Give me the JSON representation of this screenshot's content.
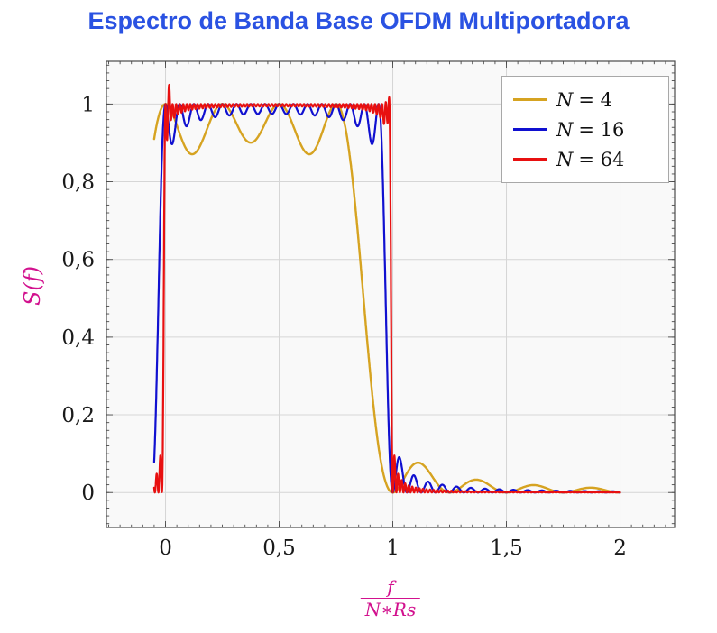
{
  "title": {
    "text": "Espectro de Banda Base OFDM Multiportadora",
    "color": "#2a52e2"
  },
  "ylabel": {
    "text": "S(f)",
    "color": "#d2118e"
  },
  "xlabel": {
    "numerator": "f",
    "denominator": "N∗Rs",
    "color": "#d2118e"
  },
  "legend": {
    "position": "top-right",
    "items": [
      {
        "var": "N",
        "val": "= 4",
        "color": "#d6a321"
      },
      {
        "var": "N",
        "val": "= 16",
        "color": "#1010d0"
      },
      {
        "var": "N",
        "val": "= 64",
        "color": "#e81010"
      }
    ]
  },
  "chart_data": {
    "type": "line",
    "title": "Espectro de Banda Base OFDM Multiportadora",
    "xlabel": "f/(N*Rs)",
    "ylabel": "S(f)",
    "xlim": [
      -0.26,
      2.24
    ],
    "ylim": [
      -0.09,
      1.11
    ],
    "grid": true,
    "grid_color": "#d6d6d6",
    "background": "#f9f9f9",
    "frame_color": "#4a4a4a",
    "tick_text_color": "#1a1a1a",
    "legend_position": "top-right",
    "x_ticks": [
      {
        "v": 0,
        "label": "0"
      },
      {
        "v": 0.5,
        "label": "0,5"
      },
      {
        "v": 1,
        "label": "1"
      },
      {
        "v": 1.5,
        "label": "1,5"
      },
      {
        "v": 2,
        "label": "2"
      }
    ],
    "y_ticks": [
      {
        "v": 0,
        "label": "0"
      },
      {
        "v": 0.2,
        "label": "0,2"
      },
      {
        "v": 0.4,
        "label": "0,4"
      },
      {
        "v": 0.6,
        "label": "0,6"
      },
      {
        "v": 0.8,
        "label": "0,8"
      },
      {
        "v": 1,
        "label": "1"
      }
    ],
    "minor_x_step": 0.05,
    "minor_y_step": 0.02,
    "x_range_data": [
      -0.05,
      2.0
    ],
    "sample_step": 0.001,
    "model": "S_N(x) = sum_{k=0}^{N-1} sinc^2(N*x - k), sinc(t) = sin(pi*t)/(pi*t), x = f/(N*Rs)",
    "series": [
      {
        "name": "N = 4",
        "N": 4,
        "color": "#d6a321",
        "width": 2.4,
        "features": {
          "passband_peaks_x": [
            0,
            0.25,
            0.5,
            0.75
          ],
          "peak_value": 1.0,
          "ripple_min": 0.87,
          "zero_x": 1.0,
          "sidelobe_peaks": [
            [
              1.12,
              0.07
            ],
            [
              1.37,
              0.04
            ],
            [
              1.62,
              0.027
            ],
            [
              1.87,
              0.02
            ]
          ]
        }
      },
      {
        "name": "N = 16",
        "N": 16,
        "color": "#1010d0",
        "width": 2.2,
        "features": {
          "passband_level": 1.0,
          "ripple_min": 0.94,
          "rolloff_x": 0.97,
          "value_at_minus_0_05": 0.08,
          "first_sidelobe": [
            1.03,
            0.05
          ]
        }
      },
      {
        "name": "N = 64",
        "N": 64,
        "color": "#e81010",
        "width": 2.2,
        "features": {
          "flat_top": 1.0,
          "edge_overshoot_peak": 1.05,
          "rolloff_x": 0.99,
          "value_at_minus_0_05": 0.0
        },
        "edge_overshoot": {
          "amp": 0.05,
          "centers": [
            0.016,
            0.978
          ],
          "width": 0.006
        }
      }
    ]
  }
}
